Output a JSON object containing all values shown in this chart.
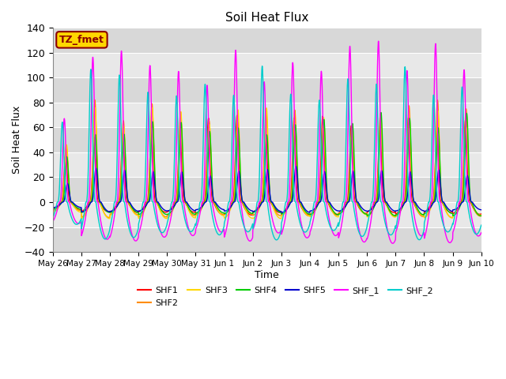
{
  "title": "Soil Heat Flux",
  "xlabel": "Time",
  "ylabel": "Soil Heat Flux",
  "ylim": [
    -40,
    140
  ],
  "yticks": [
    -40,
    -20,
    0,
    20,
    40,
    60,
    80,
    100,
    120,
    140
  ],
  "annotation_text": "TZ_fmet",
  "annotation_color": "#8B0000",
  "annotation_bg": "#FFD700",
  "series_colors": {
    "SHF1": "#FF0000",
    "SHF2": "#FF8C00",
    "SHF3": "#FFD700",
    "SHF4": "#00CC00",
    "SHF5": "#0000CD",
    "SHF_1": "#FF00FF",
    "SHF_2": "#00CCCC"
  },
  "background_color": "#FFFFFF",
  "plot_bg_color": "#E0E0E0",
  "n_days": 15,
  "points_per_day": 144,
  "amplitudes": {
    "SHF1": 68,
    "SHF2": 80,
    "SHF3": 75,
    "SHF4": 72,
    "SHF5": 28,
    "SHF_1": 125,
    "SHF_2": 108
  },
  "negatives": {
    "SHF1": -10,
    "SHF2": -12,
    "SHF3": -13,
    "SHF4": -11,
    "SHF5": -8,
    "SHF_1": -32,
    "SHF_2": -30
  },
  "phase_shift": {
    "SHF1": 0.0,
    "SHF2": 0.02,
    "SHF3": 0.03,
    "SHF4": 0.04,
    "SHF5": 0.06,
    "SHF_1": -0.05,
    "SHF_2": -0.12
  },
  "tick_labels": [
    "May 26",
    "May 27",
    "May 28",
    "May 29",
    "May 30",
    "May 31",
    "Jun 1",
    "Jun 2",
    "Jun 3",
    "Jun 4",
    "Jun 5",
    "Jun 6",
    "Jun 7",
    "Jun 8",
    "Jun 9",
    "Jun 10"
  ],
  "band_colors": [
    "#D8D8D8",
    "#E8E8E8"
  ]
}
